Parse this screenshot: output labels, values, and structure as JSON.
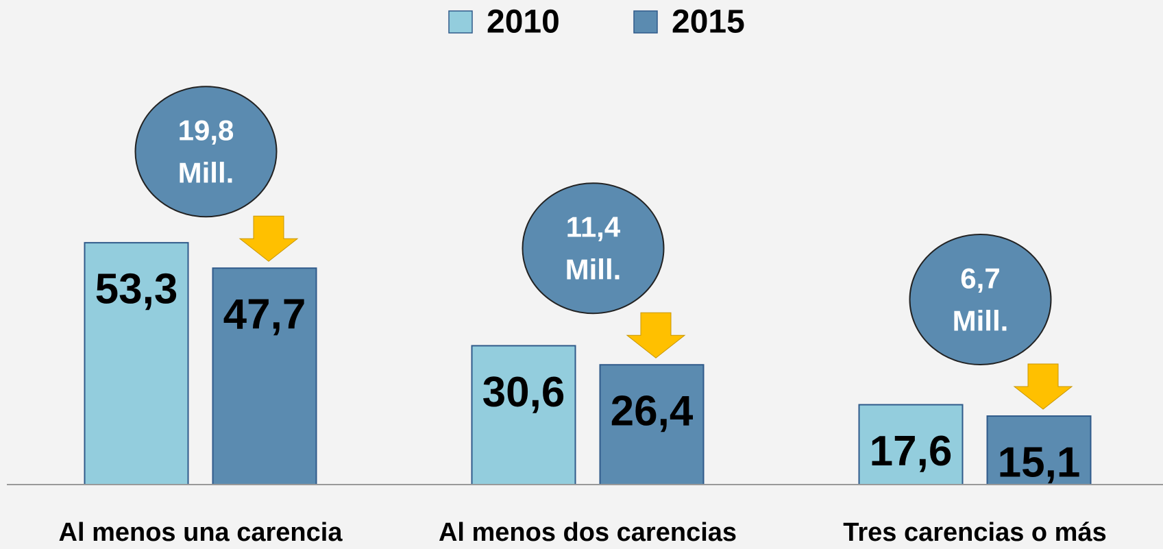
{
  "chart_data": {
    "type": "bar",
    "categories": [
      "Al menos una carencia",
      "Al menos dos carencias",
      "Tres carencias o más"
    ],
    "series": [
      {
        "name": "2010",
        "color": "#93cddd",
        "values": [
          53.3,
          30.6,
          17.6
        ],
        "value_labels": [
          "53,3",
          "30,6",
          "17,6"
        ]
      },
      {
        "name": "2015",
        "color": "#5b8bb0",
        "values": [
          47.7,
          26.4,
          15.1
        ],
        "value_labels": [
          "47,7",
          "26,4",
          "15,1"
        ]
      }
    ],
    "annotations": [
      [
        "19,8",
        "Mill."
      ],
      [
        "11,4",
        "Mill."
      ],
      [
        "6,7",
        "Mill."
      ]
    ],
    "ylim": [
      0,
      80
    ]
  }
}
